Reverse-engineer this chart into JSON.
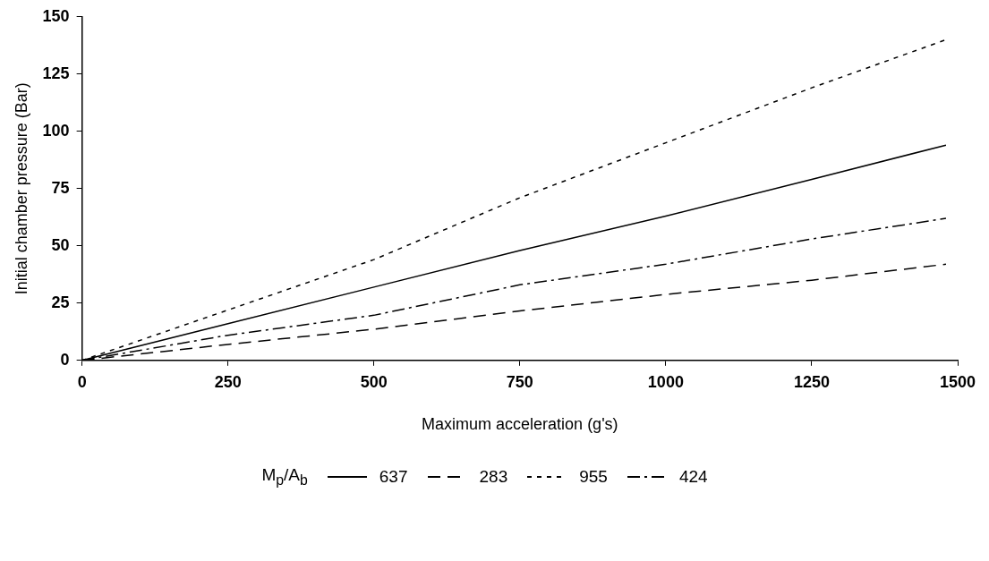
{
  "chart_data": {
    "type": "line",
    "xlabel": "Maximum acceleration (g's)",
    "ylabel": "Initial chamber pressure (Bar)",
    "legend_title": "M$_{p}$/A$_{b}$",
    "x": [
      0,
      250,
      500,
      750,
      1000,
      1250,
      1480
    ],
    "series": [
      {
        "name": "637",
        "color": "#000000",
        "line_style": "solid",
        "values": [
          0,
          16,
          32,
          48,
          63,
          79,
          94
        ]
      },
      {
        "name": "283",
        "color": "#000000",
        "line_style": "dashed",
        "values": [
          0,
          7,
          13.6,
          21.6,
          28.8,
          35,
          42
        ]
      },
      {
        "name": "955",
        "color": "#000000",
        "line_style": "dotted",
        "values": [
          0,
          22,
          44,
          71,
          95,
          119,
          140
        ]
      },
      {
        "name": "424",
        "color": "#000000",
        "line_style": "dashdot",
        "values": [
          0,
          11,
          19.7,
          33,
          42,
          53,
          62
        ]
      }
    ],
    "xlim": [
      0,
      1500
    ],
    "xticks": [
      0,
      250,
      500,
      750,
      1000,
      1250,
      1500
    ],
    "ylim": [
      0,
      150
    ],
    "yticks": [
      0,
      25,
      50,
      75,
      100,
      125,
      150
    ],
    "grid": false,
    "legend": "bottom",
    "marker": "none"
  }
}
